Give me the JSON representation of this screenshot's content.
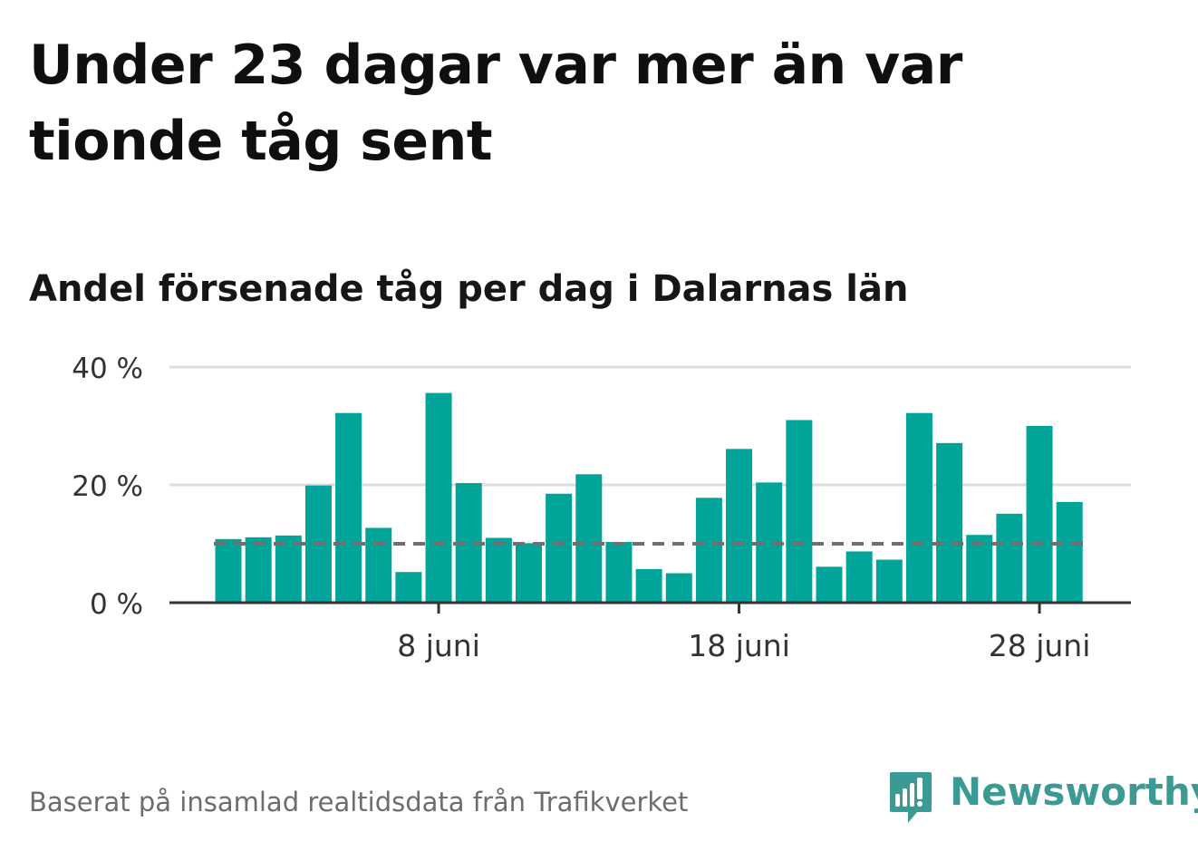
{
  "header": {
    "title": "Under 23 dagar var mer än var tionde tåg sent",
    "subtitle": "Andel försenade tåg per dag i Dalarnas län"
  },
  "footer": {
    "source": "Baserat på insamlad realtidsdata från Trafikverket",
    "brand": "Newsworthy"
  },
  "colors": {
    "bar": "#00a499",
    "reference_line": "#6f6f6f",
    "grid": "#dddddd",
    "axis": "#333333",
    "brand": "#3b9a93"
  },
  "chart_data": {
    "type": "bar",
    "x_unit": "day of June",
    "x": [
      1,
      2,
      3,
      4,
      5,
      6,
      7,
      8,
      9,
      10,
      11,
      12,
      13,
      14,
      15,
      16,
      17,
      18,
      19,
      20,
      21,
      22,
      23,
      24,
      25,
      26,
      27,
      28,
      29
    ],
    "values": [
      10.8,
      11.1,
      11.4,
      19.9,
      32.2,
      12.7,
      5.2,
      35.6,
      20.3,
      11.0,
      10.1,
      18.5,
      21.8,
      10.3,
      5.7,
      5.0,
      17.8,
      26.1,
      20.4,
      31.0,
      6.1,
      8.7,
      7.3,
      32.2,
      27.1,
      11.5,
      15.1,
      30.0,
      17.1
    ],
    "reference_line": 10,
    "ylim": [
      0,
      40
    ],
    "y_ticks": [
      {
        "value": 0,
        "label": "0 %"
      },
      {
        "value": 20,
        "label": "20 %"
      },
      {
        "value": 40,
        "label": "40 %"
      }
    ],
    "x_ticks": [
      {
        "value": 8,
        "label": "8 juni"
      },
      {
        "value": 18,
        "label": "18 juni"
      },
      {
        "value": 28,
        "label": "28 juni"
      }
    ],
    "grid": true,
    "legend": "none"
  }
}
